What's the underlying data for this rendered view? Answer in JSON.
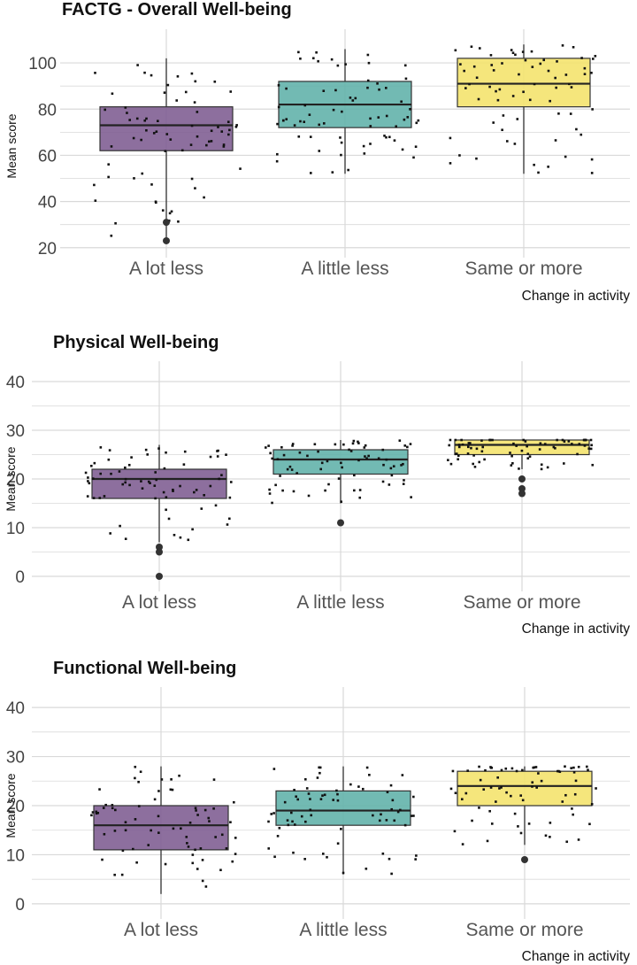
{
  "colors": {
    "a_lot_less": "#7d5b91",
    "a_little_less": "#5fb0a8",
    "same_or_more": "#f4e36a",
    "grid": "#d9d9d9",
    "points": "#111111"
  },
  "chart_data": [
    {
      "type": "box",
      "title": "FACTG - Overall Well-being",
      "xlabel": "Change in activity",
      "ylabel": "Mean score",
      "categories": [
        "A lot less",
        "A little less",
        "Same or more"
      ],
      "yticks": [
        20,
        40,
        60,
        80,
        100
      ],
      "ylim": [
        18,
        110
      ],
      "grid": true,
      "boxes": [
        {
          "category": "A lot less",
          "fill": "#7d5b91",
          "whisker_low": 24,
          "q1": 62,
          "median": 73,
          "q3": 81,
          "whisker_high": 102,
          "outliers": [
            31,
            23
          ]
        },
        {
          "category": "A little less",
          "fill": "#5fb0a8",
          "whisker_low": 52,
          "q1": 72,
          "median": 82,
          "q3": 92,
          "whisker_high": 106,
          "outliers": []
        },
        {
          "category": "Same or more",
          "fill": "#f4e36a",
          "whisker_low": 52,
          "q1": 81,
          "median": 91,
          "q3": 102,
          "whisker_high": 108,
          "outliers": []
        }
      ]
    },
    {
      "type": "box",
      "title": "Physical Well-being",
      "xlabel": "Change in activity",
      "ylabel": "Mean score",
      "categories": [
        "A lot less",
        "A little less",
        "Same or more"
      ],
      "yticks": [
        0,
        10,
        20,
        30,
        40
      ],
      "ylim": [
        -2,
        42
      ],
      "grid": true,
      "boxes": [
        {
          "category": "A lot less",
          "fill": "#7d5b91",
          "whisker_low": 7,
          "q1": 16,
          "median": 20,
          "q3": 22,
          "whisker_high": 27,
          "outliers": [
            6,
            5,
            0
          ]
        },
        {
          "category": "A little less",
          "fill": "#5fb0a8",
          "whisker_low": 15,
          "q1": 21,
          "median": 24,
          "q3": 26,
          "whisker_high": 28,
          "outliers": [
            11
          ]
        },
        {
          "category": "Same or more",
          "fill": "#f4e36a",
          "whisker_low": 22,
          "q1": 25,
          "median": 27,
          "q3": 28,
          "whisker_high": 28,
          "outliers": [
            20,
            18,
            17
          ]
        }
      ]
    },
    {
      "type": "box",
      "title": "Functional Well-being",
      "xlabel": "Change in activity",
      "ylabel": "Mean score",
      "categories": [
        "A lot less",
        "A little less",
        "Same or more"
      ],
      "yticks": [
        0,
        10,
        20,
        30,
        40
      ],
      "ylim": [
        -2,
        42
      ],
      "grid": true,
      "boxes": [
        {
          "category": "A lot less",
          "fill": "#7d5b91",
          "whisker_low": 2,
          "q1": 11,
          "median": 16,
          "q3": 20,
          "whisker_high": 28,
          "outliers": []
        },
        {
          "category": "A little less",
          "fill": "#5fb0a8",
          "whisker_low": 6,
          "q1": 16,
          "median": 19,
          "q3": 23,
          "whisker_high": 28,
          "outliers": []
        },
        {
          "category": "Same or more",
          "fill": "#f4e36a",
          "whisker_low": 12,
          "q1": 20,
          "median": 24,
          "q3": 27,
          "whisker_high": 28,
          "outliers": [
            9
          ]
        }
      ]
    }
  ]
}
